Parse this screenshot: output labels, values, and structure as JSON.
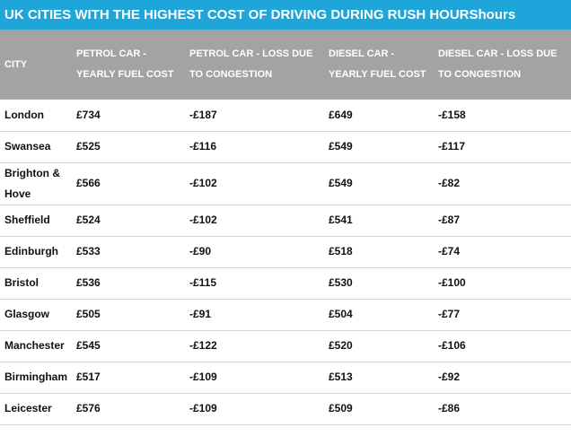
{
  "header": {
    "title": "UK CITIES WITH THE HIGHEST COST OF DRIVING DURING RUSH HOURShours"
  },
  "table": {
    "columns": [
      "CITY",
      "PETROL CAR - YEARLY FUEL COST",
      "PETROL CAR - LOSS DUE TO CONGESTION",
      "DIESEL CAR - YEARLY FUEL COST",
      "DIESEL CAR - LOSS DUE TO CONGESTION"
    ],
    "rows": [
      [
        "London",
        "£734",
        "-£187",
        "£649",
        "-£158"
      ],
      [
        "Swansea",
        "£525",
        "-£116",
        "£549",
        "-£117"
      ],
      [
        "Brighton & Hove",
        "£566",
        "-£102",
        "£549",
        "-£82"
      ],
      [
        "Sheffield",
        "£524",
        "-£102",
        "£541",
        "-£87"
      ],
      [
        "Edinburgh",
        "£533",
        "-£90",
        "£518",
        "-£74"
      ],
      [
        "Bristol",
        "£536",
        "-£115",
        "£530",
        "-£100"
      ],
      [
        "Glasgow",
        "£505",
        "-£91",
        "£504",
        "-£77"
      ],
      [
        "Manchester",
        "£545",
        "-£122",
        "£520",
        "-£106"
      ],
      [
        "Birmingham",
        "£517",
        "-£109",
        "£513",
        "-£92"
      ],
      [
        "Leicester",
        "£576",
        "-£109",
        "£509",
        "-£86"
      ]
    ]
  }
}
